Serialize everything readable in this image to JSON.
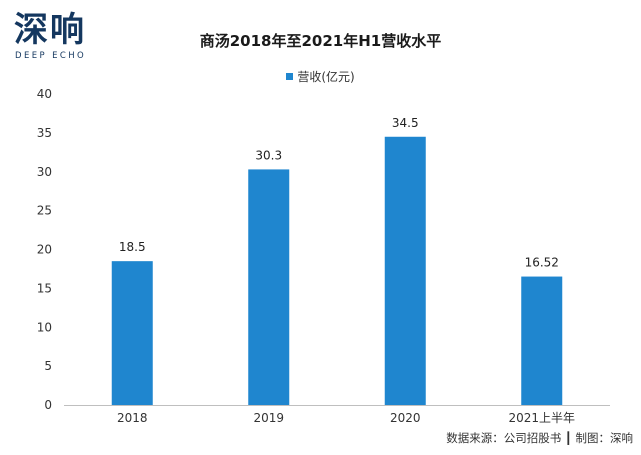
{
  "logo": {
    "main": "深响",
    "sub": "DEEP ECHO",
    "color": "#14375f"
  },
  "chart_data": {
    "type": "bar",
    "title": "商汤2018年至2021年H1营收水平",
    "categories": [
      "2018",
      "2019",
      "2020",
      "2021上半年"
    ],
    "series": [
      {
        "name": "营收(亿元)",
        "values": [
          18.5,
          30.3,
          34.5,
          16.52
        ],
        "labels": [
          "18.5",
          "30.3",
          "34.5",
          "16.52"
        ],
        "color": "#1f86cf"
      }
    ],
    "ylim": [
      0,
      40
    ],
    "yticks": [
      0,
      5,
      10,
      15,
      20,
      25,
      30,
      35,
      40
    ],
    "grid": false,
    "legend_position": "top"
  },
  "source": "数据来源：公司招股书 ┃ 制图：深响"
}
